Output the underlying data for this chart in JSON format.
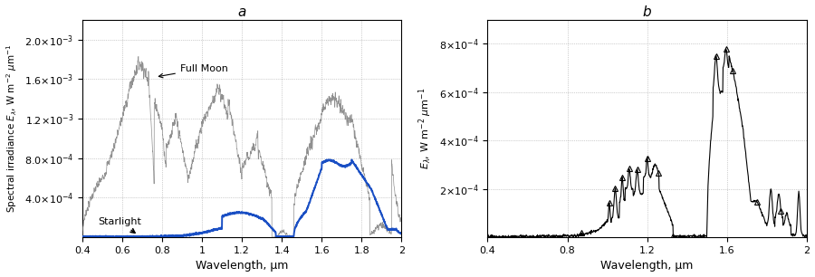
{
  "panel_a_title": "a",
  "panel_b_title": "b",
  "xlabel": "Wavelength, μm",
  "ylabel_a": "Spectral irradiance $E_\\lambda$, W m$^{-2}$ μm$^{-1}$",
  "ylabel_b": "$E_\\lambda$, W m$^{-2}$ μm$^{-1}$",
  "xlim_a": [
    0.4,
    2.0
  ],
  "xlim_b": [
    0.4,
    2.0
  ],
  "ylim_a": [
    0,
    0.0022
  ],
  "ylim_b": [
    0,
    0.0009
  ],
  "yticks_a": [
    0.0004,
    0.0008,
    0.0012,
    0.0016,
    0.002
  ],
  "yticks_b": [
    0.0002,
    0.0004,
    0.0006,
    0.0008
  ],
  "xticks_a": [
    0.4,
    0.6,
    0.8,
    1.0,
    1.2,
    1.4,
    1.6,
    1.8,
    2.0
  ],
  "xticks_b": [
    0.4,
    0.8,
    1.2,
    1.6,
    2.0
  ],
  "fullmoon_color": "#909090",
  "starlight_color": "#1a4fc4",
  "airglow_color": "#000000",
  "annotation_fullmoon": "Full Moon",
  "annotation_starlight": "Starlight"
}
